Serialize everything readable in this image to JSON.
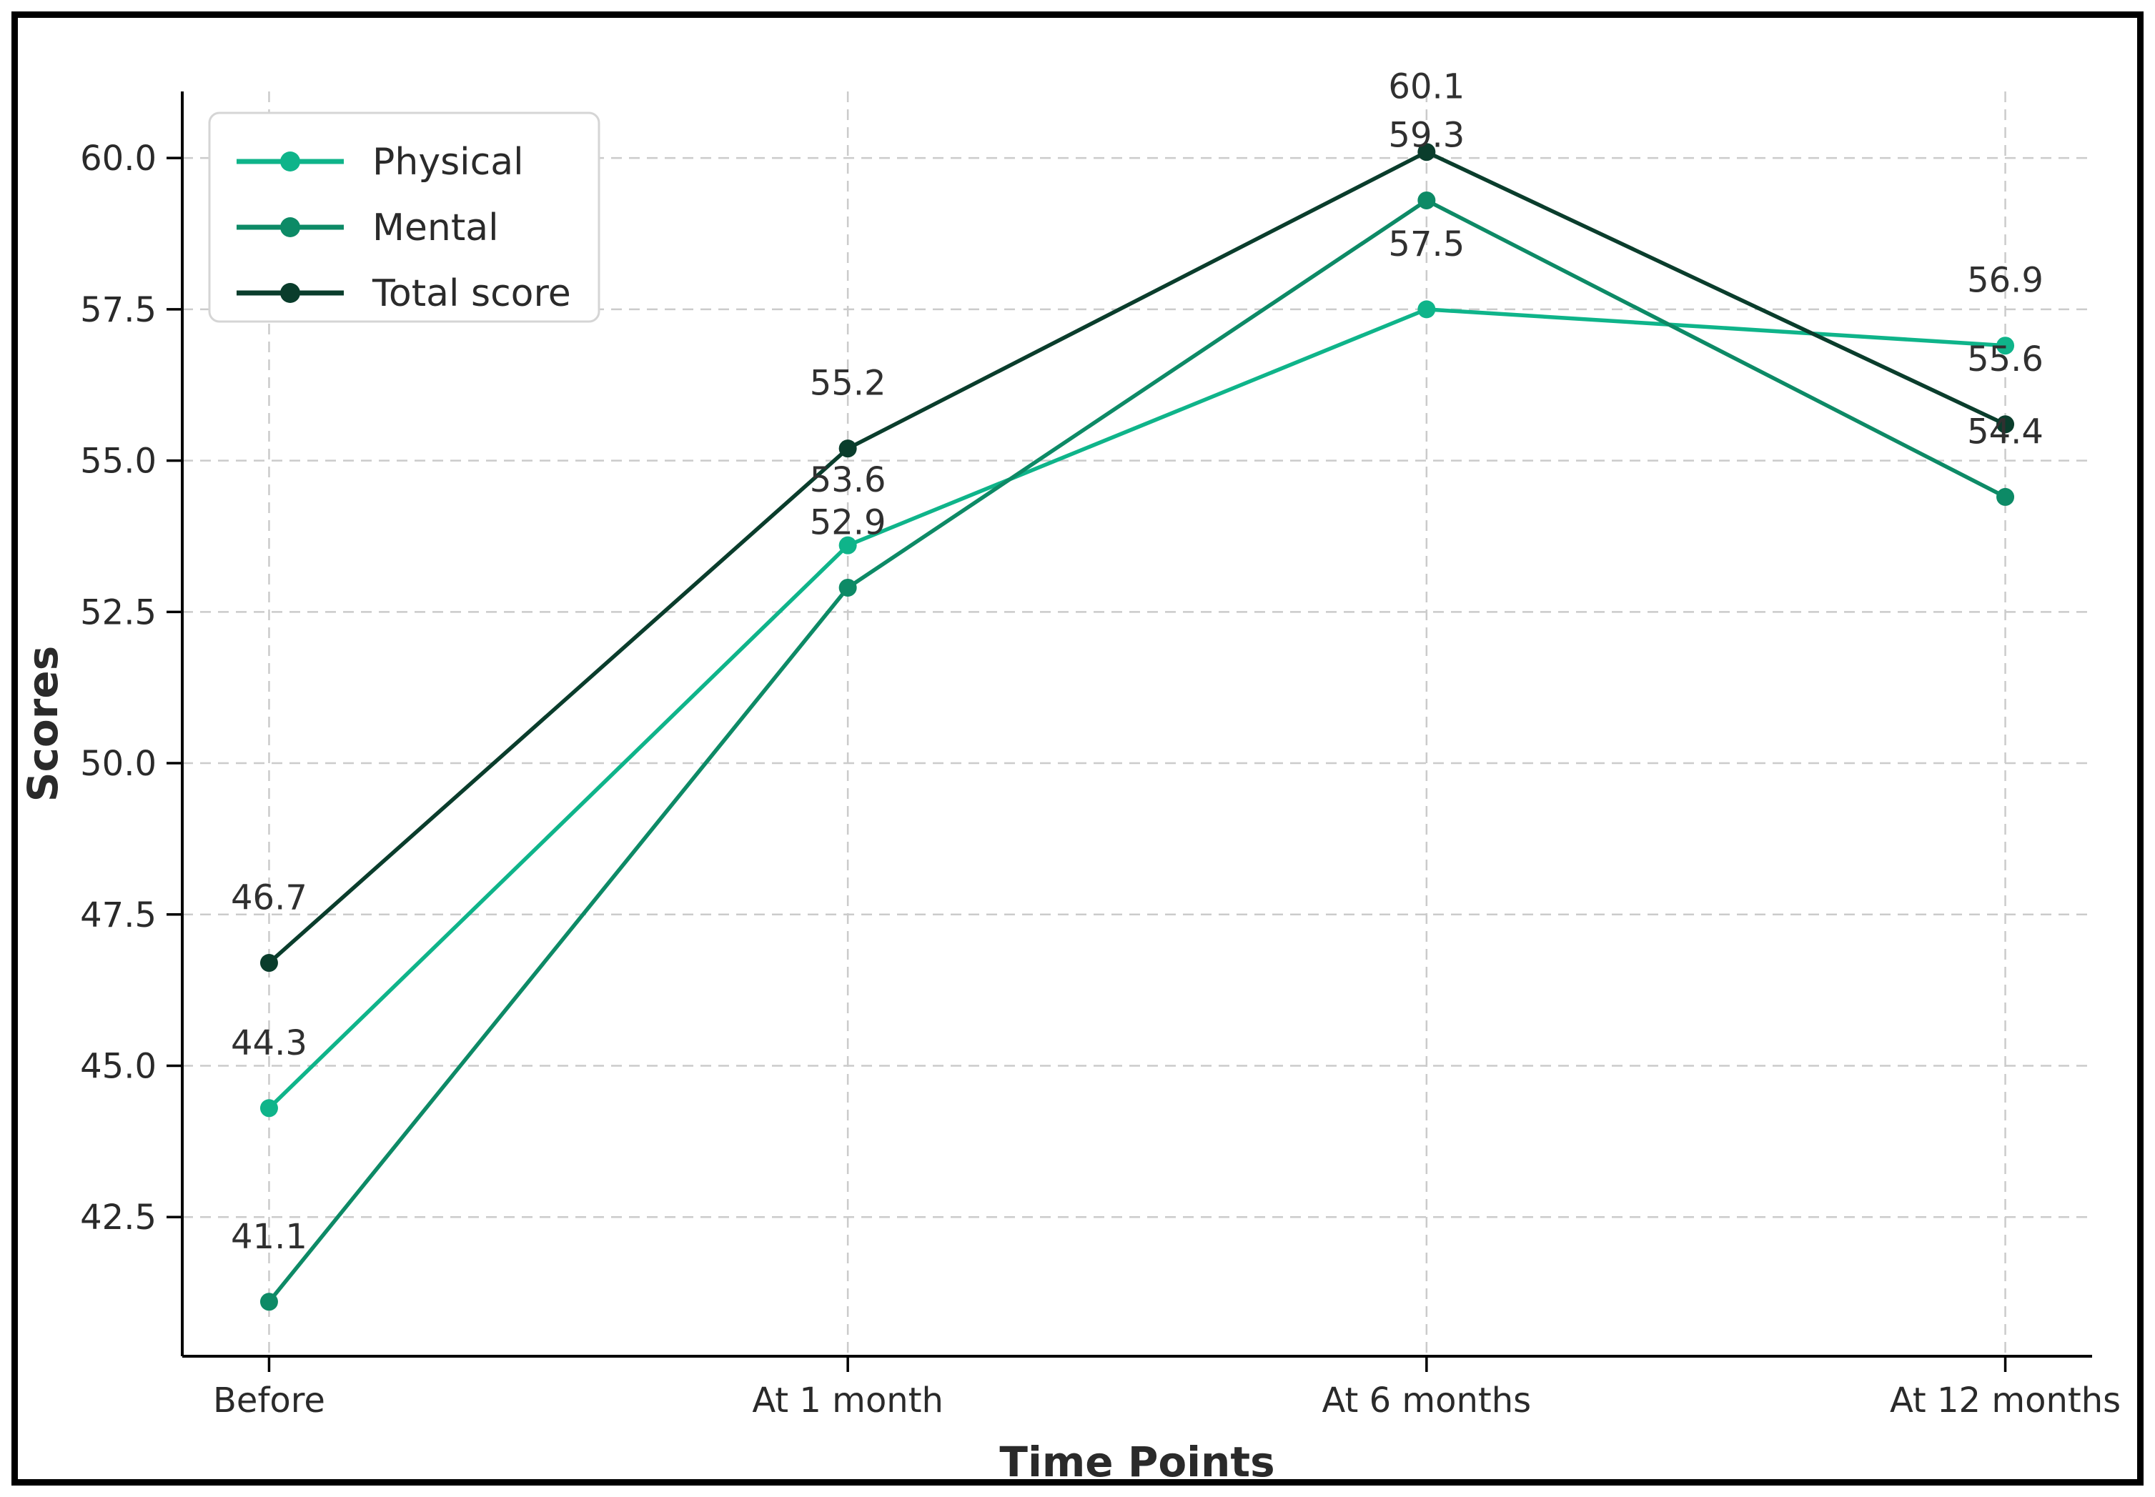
{
  "figure": {
    "background": "#ffffff",
    "border_color": "#000000"
  },
  "colors": {
    "grid": "#cbcbcb",
    "spine": "#000000",
    "tick_text": "#2a2a2a",
    "annotation_text": "#303030",
    "legend_border": "#d5d5d5",
    "legend_background": "#ffffff",
    "legend_text": "#2a2a2a"
  },
  "chart_data": {
    "type": "line",
    "title": "",
    "xlabel": "Time Points",
    "ylabel": "Scores",
    "categories": [
      "Before",
      "At 1 month",
      "At 6 months",
      "At 12 months"
    ],
    "series": [
      {
        "name": "Physical",
        "color": "#0fb48a",
        "values": [
          44.3,
          53.6,
          57.5,
          56.9
        ]
      },
      {
        "name": "Mental",
        "color": "#0d8a66",
        "values": [
          41.1,
          52.9,
          59.3,
          54.4
        ]
      },
      {
        "name": "Total score",
        "color": "#0a3d2c",
        "values": [
          46.7,
          55.2,
          60.1,
          55.6
        ]
      }
    ],
    "point_labels": [
      [
        "44.3",
        "53.6",
        "57.5",
        "56.9"
      ],
      [
        "41.1",
        "52.9",
        "59.3",
        "54.4"
      ],
      [
        "46.7",
        "55.2",
        "60.1",
        "55.6"
      ]
    ],
    "y_ticks": [
      "42.5",
      "45.0",
      "47.5",
      "50.0",
      "52.5",
      "55.0",
      "57.5",
      "60.0"
    ],
    "ylim": [
      40.2,
      61.1
    ],
    "xlim": [
      -0.15,
      3.15
    ],
    "grid": "dashed both axes",
    "legend_position": "upper left"
  }
}
